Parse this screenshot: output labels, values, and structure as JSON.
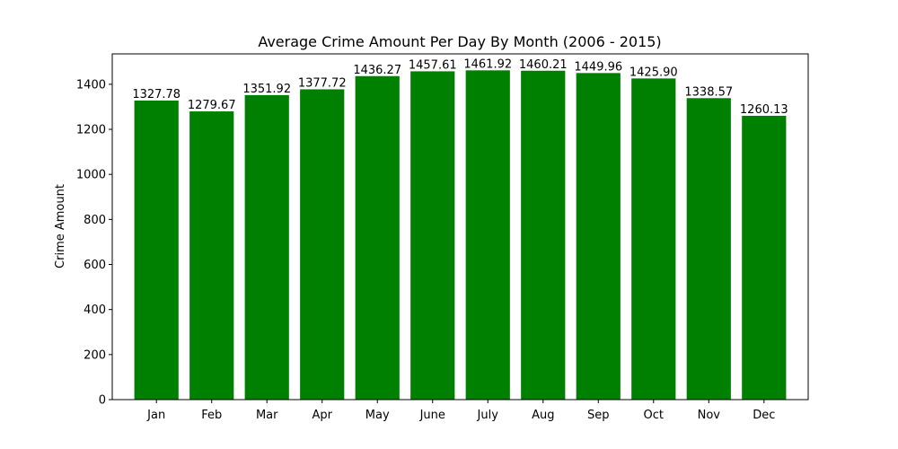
{
  "chart_data": {
    "type": "bar",
    "title": "Average Crime Amount Per Day By Month (2006 - 2015)",
    "xlabel": "",
    "ylabel": "Crime Amount",
    "categories": [
      "Jan",
      "Feb",
      "Mar",
      "Apr",
      "May",
      "June",
      "July",
      "Aug",
      "Sep",
      "Oct",
      "Nov",
      "Dec"
    ],
    "values": [
      1327.78,
      1279.67,
      1351.92,
      1377.72,
      1436.27,
      1457.61,
      1461.92,
      1460.21,
      1449.96,
      1425.9,
      1338.57,
      1260.13
    ],
    "value_labels": [
      "1327.78",
      "1279.67",
      "1351.92",
      "1377.72",
      "1436.27",
      "1457.61",
      "1461.92",
      "1460.21",
      "1449.96",
      "1425.90",
      "1338.57",
      "1260.13"
    ],
    "ylim": [
      0,
      1535
    ],
    "yticks": [
      0,
      200,
      400,
      600,
      800,
      1000,
      1200,
      1400
    ],
    "grid": false,
    "bar_color": "#008000"
  }
}
